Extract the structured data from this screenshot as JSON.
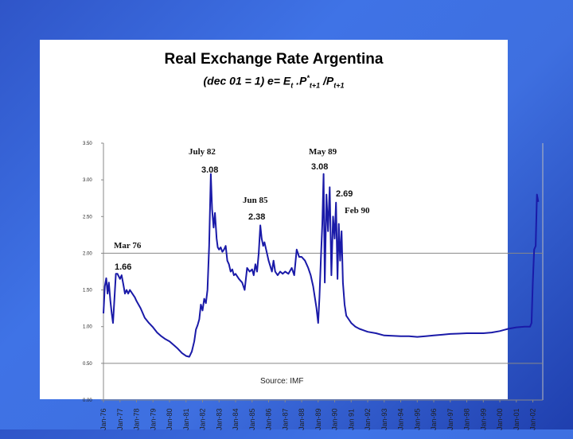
{
  "title": "Real Exchange Rate Argentina",
  "subtitle": {
    "prefix": "(dec 01 = 1) e= E",
    "sub1": "t",
    "mid": " .P",
    "sup": "*",
    "sub2": "t+1",
    "slash": " /P",
    "sub3": "t+1"
  },
  "chart_data": {
    "type": "line",
    "title": "Real Exchange Rate Argentina",
    "ylim": [
      0,
      3.5
    ],
    "yticks": [
      "0.00",
      "0.50",
      "1.00",
      "1.50",
      "2.00",
      "2.50",
      "3.00",
      "3.50"
    ],
    "xticks": [
      "Jan-76",
      "Jan-77",
      "Jan-78",
      "Jan-79",
      "Jan-80",
      "Jan-81",
      "Jan-82",
      "Jan-83",
      "Jan-84",
      "Jan-85",
      "Jan-86",
      "Jan-87",
      "Jan-88",
      "Jan-89",
      "Jan-90",
      "Jan 91",
      "Jan-92",
      "Jan-93",
      "Jan-94",
      "Jan-95",
      "Jan-96",
      "Jan-97",
      "Jan-98",
      "Jan-99",
      "Jan-00",
      "Jan-01",
      "Jan-02"
    ],
    "xrange": [
      1976.0,
      2002.6
    ],
    "reference_lines": [
      2.0,
      0.5
    ],
    "source": "Source: IMF",
    "series": [
      {
        "color": "#1a1aa8",
        "points": [
          [
            1976.0,
            1.18
          ],
          [
            1976.08,
            1.55
          ],
          [
            1976.17,
            1.66
          ],
          [
            1976.25,
            1.45
          ],
          [
            1976.33,
            1.6
          ],
          [
            1976.42,
            1.35
          ],
          [
            1976.5,
            1.18
          ],
          [
            1976.58,
            1.05
          ],
          [
            1976.67,
            1.4
          ],
          [
            1976.75,
            1.72
          ],
          [
            1976.85,
            1.72
          ],
          [
            1977.0,
            1.65
          ],
          [
            1977.1,
            1.7
          ],
          [
            1977.2,
            1.58
          ],
          [
            1977.3,
            1.45
          ],
          [
            1977.4,
            1.5
          ],
          [
            1977.5,
            1.45
          ],
          [
            1977.6,
            1.5
          ],
          [
            1977.75,
            1.45
          ],
          [
            1977.9,
            1.4
          ],
          [
            1978.0,
            1.35
          ],
          [
            1978.25,
            1.25
          ],
          [
            1978.5,
            1.12
          ],
          [
            1978.75,
            1.05
          ],
          [
            1979.0,
            0.99
          ],
          [
            1979.25,
            0.92
          ],
          [
            1979.5,
            0.87
          ],
          [
            1979.75,
            0.83
          ],
          [
            1980.0,
            0.8
          ],
          [
            1980.25,
            0.75
          ],
          [
            1980.5,
            0.7
          ],
          [
            1980.75,
            0.64
          ],
          [
            1981.0,
            0.6
          ],
          [
            1981.2,
            0.59
          ],
          [
            1981.35,
            0.66
          ],
          [
            1981.5,
            0.8
          ],
          [
            1981.6,
            0.96
          ],
          [
            1981.7,
            1.02
          ],
          [
            1981.8,
            1.1
          ],
          [
            1981.9,
            1.3
          ],
          [
            1982.0,
            1.22
          ],
          [
            1982.1,
            1.38
          ],
          [
            1982.2,
            1.32
          ],
          [
            1982.3,
            1.5
          ],
          [
            1982.4,
            2.1
          ],
          [
            1982.5,
            3.08
          ],
          [
            1982.58,
            2.6
          ],
          [
            1982.67,
            2.35
          ],
          [
            1982.75,
            2.55
          ],
          [
            1982.85,
            2.2
          ],
          [
            1982.92,
            2.08
          ],
          [
            1983.0,
            2.05
          ],
          [
            1983.1,
            2.08
          ],
          [
            1983.2,
            2.02
          ],
          [
            1983.3,
            2.05
          ],
          [
            1983.4,
            2.1
          ],
          [
            1983.5,
            1.9
          ],
          [
            1983.6,
            1.85
          ],
          [
            1983.7,
            1.75
          ],
          [
            1983.8,
            1.78
          ],
          [
            1983.9,
            1.7
          ],
          [
            1984.0,
            1.72
          ],
          [
            1984.2,
            1.65
          ],
          [
            1984.4,
            1.6
          ],
          [
            1984.55,
            1.5
          ],
          [
            1984.7,
            1.8
          ],
          [
            1984.85,
            1.75
          ],
          [
            1985.0,
            1.78
          ],
          [
            1985.1,
            1.7
          ],
          [
            1985.2,
            1.85
          ],
          [
            1985.3,
            1.75
          ],
          [
            1985.4,
            2.0
          ],
          [
            1985.5,
            2.38
          ],
          [
            1985.58,
            2.2
          ],
          [
            1985.67,
            2.1
          ],
          [
            1985.75,
            2.15
          ],
          [
            1985.85,
            2.05
          ],
          [
            1986.0,
            1.9
          ],
          [
            1986.2,
            1.75
          ],
          [
            1986.3,
            1.9
          ],
          [
            1986.4,
            1.75
          ],
          [
            1986.55,
            1.7
          ],
          [
            1986.7,
            1.75
          ],
          [
            1986.85,
            1.72
          ],
          [
            1987.0,
            1.75
          ],
          [
            1987.2,
            1.72
          ],
          [
            1987.4,
            1.8
          ],
          [
            1987.55,
            1.7
          ],
          [
            1987.7,
            2.05
          ],
          [
            1987.85,
            1.95
          ],
          [
            1988.0,
            1.95
          ],
          [
            1988.2,
            1.9
          ],
          [
            1988.4,
            1.8
          ],
          [
            1988.55,
            1.7
          ],
          [
            1988.7,
            1.55
          ],
          [
            1988.8,
            1.4
          ],
          [
            1988.9,
            1.25
          ],
          [
            1989.0,
            1.05
          ],
          [
            1989.08,
            1.4
          ],
          [
            1989.17,
            1.95
          ],
          [
            1989.25,
            2.4
          ],
          [
            1989.33,
            3.08
          ],
          [
            1989.4,
            1.6
          ],
          [
            1989.5,
            2.8
          ],
          [
            1989.6,
            2.3
          ],
          [
            1989.7,
            2.9
          ],
          [
            1989.8,
            1.7
          ],
          [
            1989.9,
            2.5
          ],
          [
            1990.0,
            2.2
          ],
          [
            1990.08,
            2.69
          ],
          [
            1990.17,
            1.65
          ],
          [
            1990.25,
            2.4
          ],
          [
            1990.33,
            1.9
          ],
          [
            1990.42,
            2.3
          ],
          [
            1990.5,
            1.6
          ],
          [
            1990.6,
            1.3
          ],
          [
            1990.7,
            1.15
          ],
          [
            1990.85,
            1.1
          ],
          [
            1991.0,
            1.05
          ],
          [
            1991.25,
            1.0
          ],
          [
            1991.5,
            0.97
          ],
          [
            1991.75,
            0.95
          ],
          [
            1992.0,
            0.93
          ],
          [
            1992.5,
            0.91
          ],
          [
            1993.0,
            0.88
          ],
          [
            1993.5,
            0.875
          ],
          [
            1994.0,
            0.87
          ],
          [
            1994.5,
            0.87
          ],
          [
            1995.0,
            0.86
          ],
          [
            1995.5,
            0.87
          ],
          [
            1996.0,
            0.88
          ],
          [
            1996.5,
            0.89
          ],
          [
            1997.0,
            0.9
          ],
          [
            1997.5,
            0.905
          ],
          [
            1998.0,
            0.91
          ],
          [
            1998.5,
            0.91
          ],
          [
            1999.0,
            0.91
          ],
          [
            1999.5,
            0.92
          ],
          [
            2000.0,
            0.94
          ],
          [
            2000.5,
            0.97
          ],
          [
            2001.0,
            0.99
          ],
          [
            2001.5,
            1.0
          ],
          [
            2001.83,
            1.0
          ],
          [
            2001.92,
            1.05
          ],
          [
            2002.0,
            1.6
          ],
          [
            2002.08,
            2.05
          ],
          [
            2002.17,
            2.1
          ],
          [
            2002.25,
            2.8
          ],
          [
            2002.33,
            2.7
          ]
        ]
      }
    ],
    "annotations": [
      {
        "label": "Mar 76",
        "value": "1.66",
        "x": 1976.17,
        "y": 1.66
      },
      {
        "label": "July 82",
        "value": "3.08",
        "x": 1982.5,
        "y": 3.08
      },
      {
        "label": "Jun 85",
        "value": "2.38",
        "x": 1985.5,
        "y": 2.38
      },
      {
        "label": "May 89",
        "value": "3.08",
        "x": 1989.33,
        "y": 3.08
      },
      {
        "label": "Feb 90",
        "value": "2.69",
        "x": 1990.08,
        "y": 2.69
      }
    ]
  }
}
